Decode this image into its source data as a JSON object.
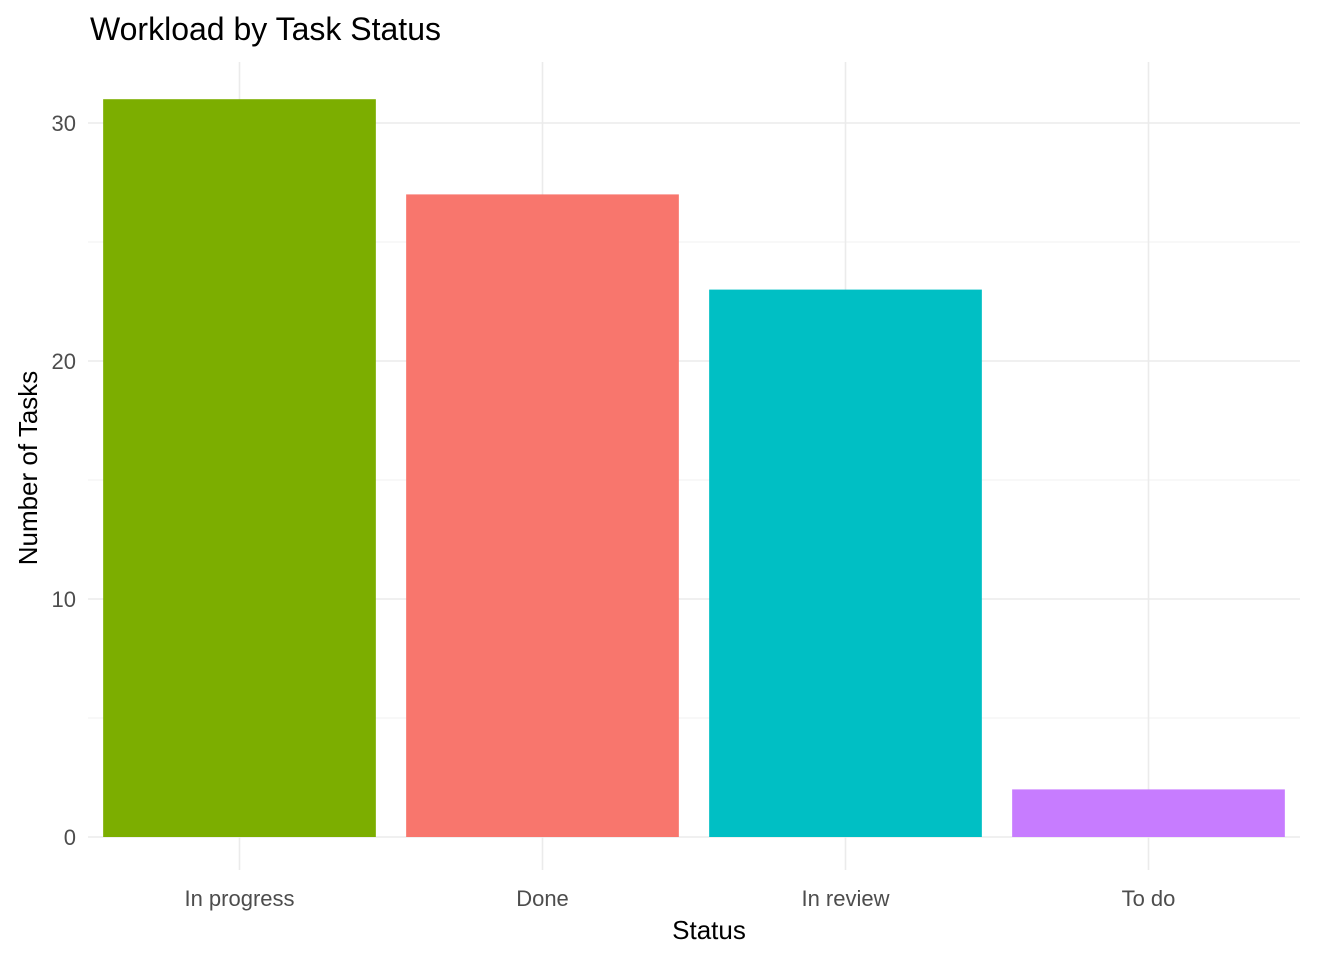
{
  "chart_data": {
    "type": "bar",
    "title": "Workload by Task Status",
    "xlabel": "Status",
    "ylabel": "Number of Tasks",
    "categories": [
      "In progress",
      "Done",
      "In review",
      "To do"
    ],
    "values": [
      31,
      27,
      23,
      2
    ],
    "colors": [
      "#7CAE00",
      "#F8766D",
      "#00BFC4",
      "#C77CFF"
    ],
    "ylim": [
      0,
      32
    ],
    "yticks": [
      0,
      10,
      20,
      30
    ],
    "grid": true,
    "legend": "none"
  }
}
